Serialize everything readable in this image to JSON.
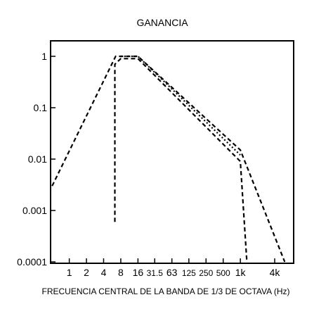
{
  "chart_data": {
    "type": "line",
    "title": "GANANCIA",
    "xlabel": "FRECUENCIA CENTRAL DE LA BANDA DE 1/3 DE OCTAVA (Hz)",
    "ylabel": "",
    "x_scale": "log",
    "y_scale": "log",
    "ylim": [
      0.0001,
      1
    ],
    "grid": false,
    "x_ticks": [
      {
        "value": 1,
        "label": "1"
      },
      {
        "value": 2,
        "label": "2"
      },
      {
        "value": 4,
        "label": "4"
      },
      {
        "value": 8,
        "label": "8"
      },
      {
        "value": 16,
        "label": "16"
      },
      {
        "value": 31.5,
        "label": "31.5"
      },
      {
        "value": 63,
        "label": "63"
      },
      {
        "value": 125,
        "label": "125"
      },
      {
        "value": 250,
        "label": "250"
      },
      {
        "value": 500,
        "label": "500"
      },
      {
        "value": 1000,
        "label": "1k"
      },
      {
        "value": 4000,
        "label": "4k"
      }
    ],
    "y_ticks": [
      {
        "value": 0.0001,
        "label": "0.0001"
      },
      {
        "value": 0.001,
        "label": "0.001"
      },
      {
        "value": 0.01,
        "label": "0.01"
      },
      {
        "value": 0.1,
        "label": "0.1"
      },
      {
        "value": 1,
        "label": "1"
      }
    ],
    "series": [
      {
        "dash": "dashed",
        "points": [
          {
            "x": 0.5,
            "y": 0.003
          },
          {
            "x": 6.5,
            "y": 1.0
          },
          {
            "x": 16,
            "y": 1.0
          },
          {
            "x": 1000,
            "y": 0.015
          },
          {
            "x": 6000,
            "y": 0.0001
          }
        ]
      },
      {
        "dash": "dashed",
        "points": [
          {
            "x": 6.3,
            "y": 0.0006
          },
          {
            "x": 6.3,
            "y": 0.7
          },
          {
            "x": 8,
            "y": 0.9
          },
          {
            "x": 16,
            "y": 0.9
          },
          {
            "x": 1000,
            "y": 0.009
          },
          {
            "x": 1300,
            "y": 0.0001
          }
        ]
      },
      {
        "dash": "dotted",
        "points": [
          {
            "x": 8,
            "y": 1.0
          },
          {
            "x": 16,
            "y": 1.0
          },
          {
            "x": 1000,
            "y": 0.012
          }
        ]
      }
    ]
  }
}
